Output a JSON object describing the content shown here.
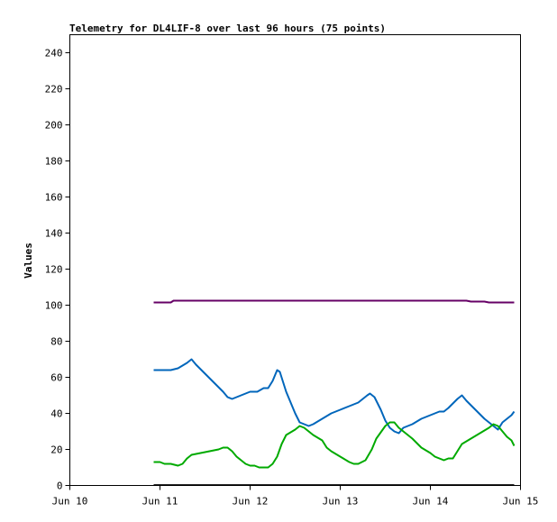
{
  "chart_data": {
    "type": "line",
    "title": "Telemetry for DL4LIF-8 over last 96 hours (75 points)",
    "xlabel": "",
    "ylabel": "Values",
    "ylim": [
      0,
      250
    ],
    "xlim": [
      0,
      5
    ],
    "y_ticks": [
      0,
      20,
      40,
      60,
      80,
      100,
      120,
      140,
      160,
      180,
      200,
      220,
      240
    ],
    "x_ticks": [
      {
        "x": 0,
        "label": "Jun 10"
      },
      {
        "x": 1,
        "label": "Jun 11"
      },
      {
        "x": 2,
        "label": "Jun 12"
      },
      {
        "x": 3,
        "label": "Jun 13"
      },
      {
        "x": 4,
        "label": "Jun 14"
      },
      {
        "x": 5,
        "label": "Jun 15"
      }
    ],
    "grid": false,
    "series": [
      {
        "color": "#660066",
        "points": [
          [
            0.93,
            101.5
          ],
          [
            1.12,
            101.5
          ],
          [
            1.15,
            102.5
          ],
          [
            2.0,
            102.5
          ],
          [
            3.0,
            102.5
          ],
          [
            4.0,
            102.5
          ],
          [
            4.4,
            102.5
          ],
          [
            4.45,
            102
          ],
          [
            4.6,
            102
          ],
          [
            4.65,
            101.5
          ],
          [
            4.93,
            101.5
          ]
        ]
      },
      {
        "color": "#0066bb",
        "points": [
          [
            0.93,
            64
          ],
          [
            1.12,
            64
          ],
          [
            1.2,
            65
          ],
          [
            1.3,
            68
          ],
          [
            1.35,
            70
          ],
          [
            1.4,
            67
          ],
          [
            1.5,
            62
          ],
          [
            1.6,
            57
          ],
          [
            1.7,
            52
          ],
          [
            1.75,
            49
          ],
          [
            1.8,
            48
          ],
          [
            1.85,
            49
          ],
          [
            1.9,
            50
          ],
          [
            2.0,
            52
          ],
          [
            2.08,
            52
          ],
          [
            2.15,
            54
          ],
          [
            2.2,
            54
          ],
          [
            2.25,
            58
          ],
          [
            2.3,
            64
          ],
          [
            2.33,
            63
          ],
          [
            2.4,
            52
          ],
          [
            2.5,
            40
          ],
          [
            2.55,
            35
          ],
          [
            2.6,
            34
          ],
          [
            2.65,
            33
          ],
          [
            2.7,
            34
          ],
          [
            2.8,
            37
          ],
          [
            2.9,
            40
          ],
          [
            3.0,
            42
          ],
          [
            3.1,
            44
          ],
          [
            3.2,
            46
          ],
          [
            3.3,
            50
          ],
          [
            3.33,
            51
          ],
          [
            3.38,
            49
          ],
          [
            3.45,
            42
          ],
          [
            3.5,
            36
          ],
          [
            3.55,
            32
          ],
          [
            3.6,
            30
          ],
          [
            3.65,
            29
          ],
          [
            3.7,
            32
          ],
          [
            3.75,
            33
          ],
          [
            3.8,
            34
          ],
          [
            3.9,
            37
          ],
          [
            4.0,
            39
          ],
          [
            4.1,
            41
          ],
          [
            4.15,
            41
          ],
          [
            4.2,
            43
          ],
          [
            4.3,
            48
          ],
          [
            4.35,
            50
          ],
          [
            4.4,
            47
          ],
          [
            4.5,
            42
          ],
          [
            4.6,
            37
          ],
          [
            4.7,
            33
          ],
          [
            4.75,
            31
          ],
          [
            4.8,
            35
          ],
          [
            4.85,
            37
          ],
          [
            4.9,
            39
          ],
          [
            4.93,
            41
          ]
        ]
      },
      {
        "color": "#00aa00",
        "points": [
          [
            0.93,
            13
          ],
          [
            1.0,
            13
          ],
          [
            1.05,
            12
          ],
          [
            1.12,
            12
          ],
          [
            1.2,
            11
          ],
          [
            1.25,
            12
          ],
          [
            1.3,
            15
          ],
          [
            1.35,
            17
          ],
          [
            1.45,
            18
          ],
          [
            1.55,
            19
          ],
          [
            1.65,
            20
          ],
          [
            1.7,
            21
          ],
          [
            1.75,
            21
          ],
          [
            1.8,
            19
          ],
          [
            1.85,
            16
          ],
          [
            1.9,
            14
          ],
          [
            1.95,
            12
          ],
          [
            2.0,
            11
          ],
          [
            2.05,
            11
          ],
          [
            2.1,
            10
          ],
          [
            2.15,
            10
          ],
          [
            2.2,
            10
          ],
          [
            2.25,
            12
          ],
          [
            2.3,
            16
          ],
          [
            2.35,
            23
          ],
          [
            2.4,
            28
          ],
          [
            2.5,
            31
          ],
          [
            2.55,
            33
          ],
          [
            2.6,
            32
          ],
          [
            2.7,
            28
          ],
          [
            2.8,
            25
          ],
          [
            2.85,
            21
          ],
          [
            2.9,
            19
          ],
          [
            3.0,
            16
          ],
          [
            3.1,
            13
          ],
          [
            3.15,
            12
          ],
          [
            3.2,
            12
          ],
          [
            3.28,
            14
          ],
          [
            3.35,
            20
          ],
          [
            3.4,
            26
          ],
          [
            3.5,
            33
          ],
          [
            3.55,
            35
          ],
          [
            3.6,
            35
          ],
          [
            3.65,
            32
          ],
          [
            3.7,
            30
          ],
          [
            3.8,
            26
          ],
          [
            3.9,
            21
          ],
          [
            4.0,
            18
          ],
          [
            4.05,
            16
          ],
          [
            4.1,
            15
          ],
          [
            4.15,
            14
          ],
          [
            4.2,
            15
          ],
          [
            4.25,
            15
          ],
          [
            4.3,
            19
          ],
          [
            4.35,
            23
          ],
          [
            4.45,
            26
          ],
          [
            4.55,
            29
          ],
          [
            4.65,
            32
          ],
          [
            4.7,
            34
          ],
          [
            4.75,
            33
          ],
          [
            4.8,
            30
          ],
          [
            4.85,
            27
          ],
          [
            4.9,
            25
          ],
          [
            4.93,
            22
          ]
        ]
      },
      {
        "color": "#000000",
        "points": [
          [
            0.93,
            0.3
          ],
          [
            4.93,
            0.3
          ]
        ]
      }
    ]
  }
}
